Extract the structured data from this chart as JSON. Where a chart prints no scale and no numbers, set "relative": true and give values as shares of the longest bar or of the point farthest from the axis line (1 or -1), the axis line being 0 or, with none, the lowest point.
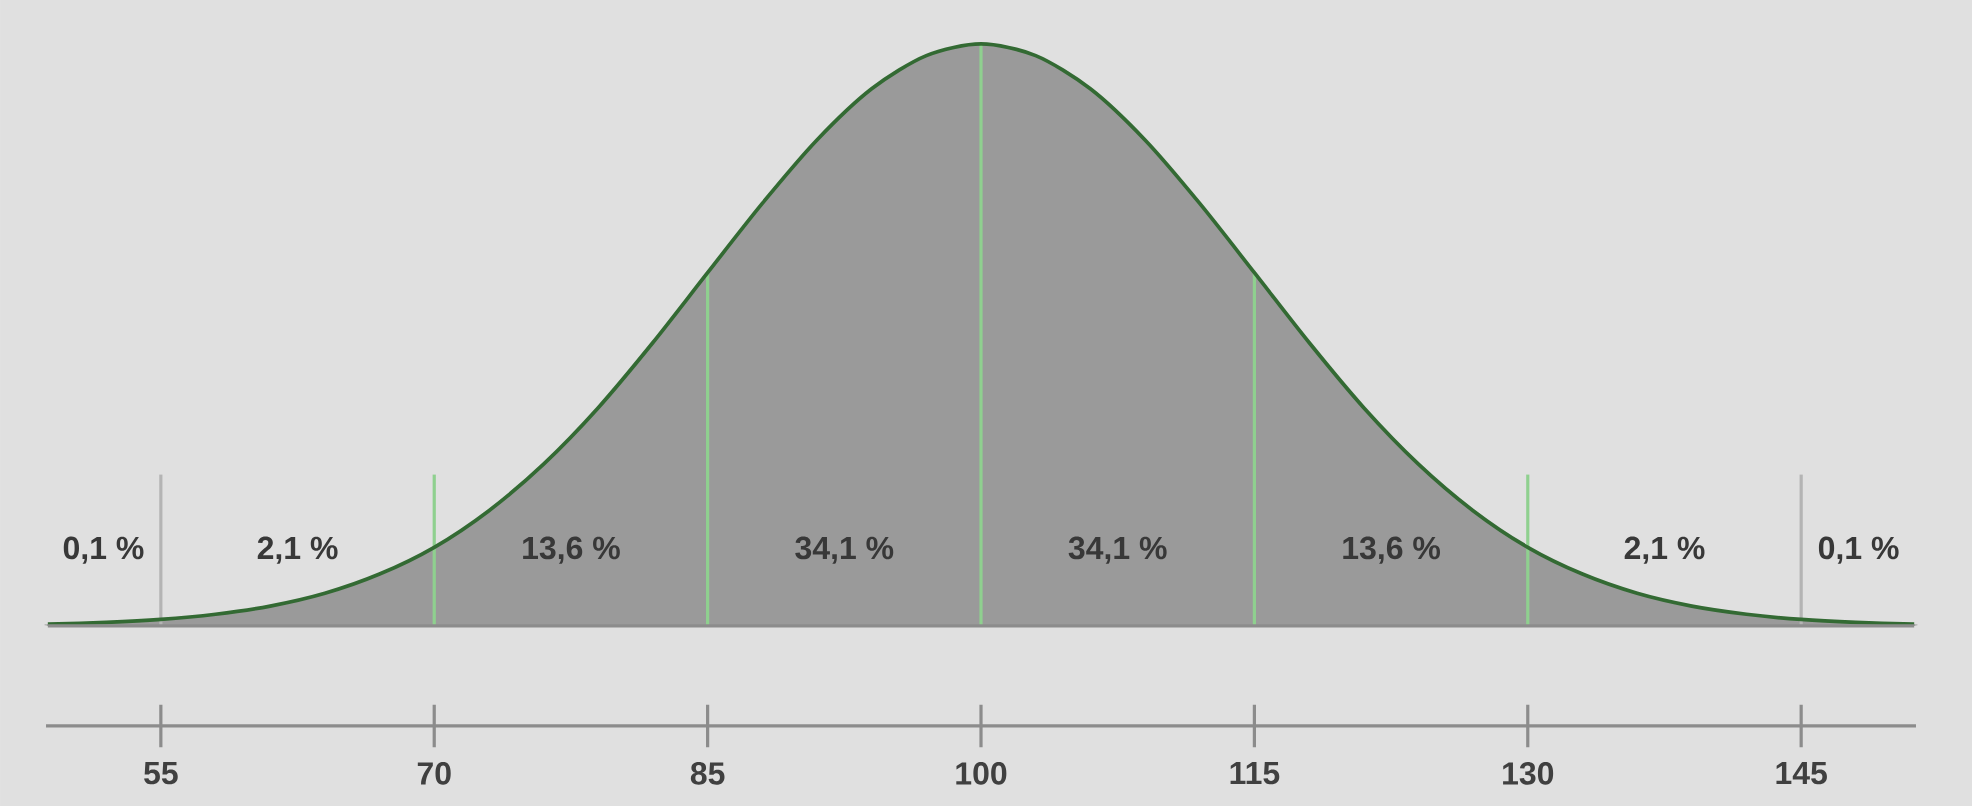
{
  "chart_data": {
    "type": "area",
    "relative": true,
    "color": "#9a9a9a",
    "x": [
      48.8,
      52,
      55,
      58,
      61,
      64,
      67,
      70,
      73,
      76,
      79,
      82,
      85,
      88,
      91,
      94,
      97,
      100,
      103,
      106,
      109,
      112,
      115,
      118,
      121,
      124,
      127,
      130,
      133,
      136,
      139,
      142,
      145,
      148,
      151.2
    ],
    "values": [
      0.003,
      0.006,
      0.011,
      0.02,
      0.034,
      0.056,
      0.089,
      0.135,
      0.198,
      0.278,
      0.375,
      0.487,
      0.607,
      0.726,
      0.835,
      0.923,
      0.98,
      1,
      0.98,
      0.923,
      0.835,
      0.726,
      0.607,
      0.487,
      0.375,
      0.278,
      0.198,
      0.135,
      0.089,
      0.056,
      0.034,
      0.02,
      0.011,
      0.006,
      0.003
    ],
    "xlim": [
      48.7,
      151.3
    ],
    "xticks": [
      55,
      70,
      85,
      100,
      115,
      130,
      145
    ],
    "tick_labels": "x",
    "grid": false,
    "ref_lines": [
      {
        "axis": "x",
        "value": 55,
        "color": "#b4b4b4"
      },
      {
        "axis": "x",
        "value": 70,
        "color": "#8fd08f"
      },
      {
        "axis": "x",
        "value": 85,
        "color": "#8fd08f"
      },
      {
        "axis": "x",
        "value": 100,
        "color": "#8fd08f"
      },
      {
        "axis": "x",
        "value": 115,
        "color": "#8fd08f"
      },
      {
        "axis": "x",
        "value": 130,
        "color": "#8fd08f"
      },
      {
        "axis": "x",
        "value": 145,
        "color": "#b4b4b4"
      }
    ],
    "annotations": [
      "0,1 %",
      "2,1 %",
      "13,6 %",
      "34,1 %",
      "34,1 %",
      "13,6 %",
      "2,1 %",
      "0,1 %"
    ]
  }
}
